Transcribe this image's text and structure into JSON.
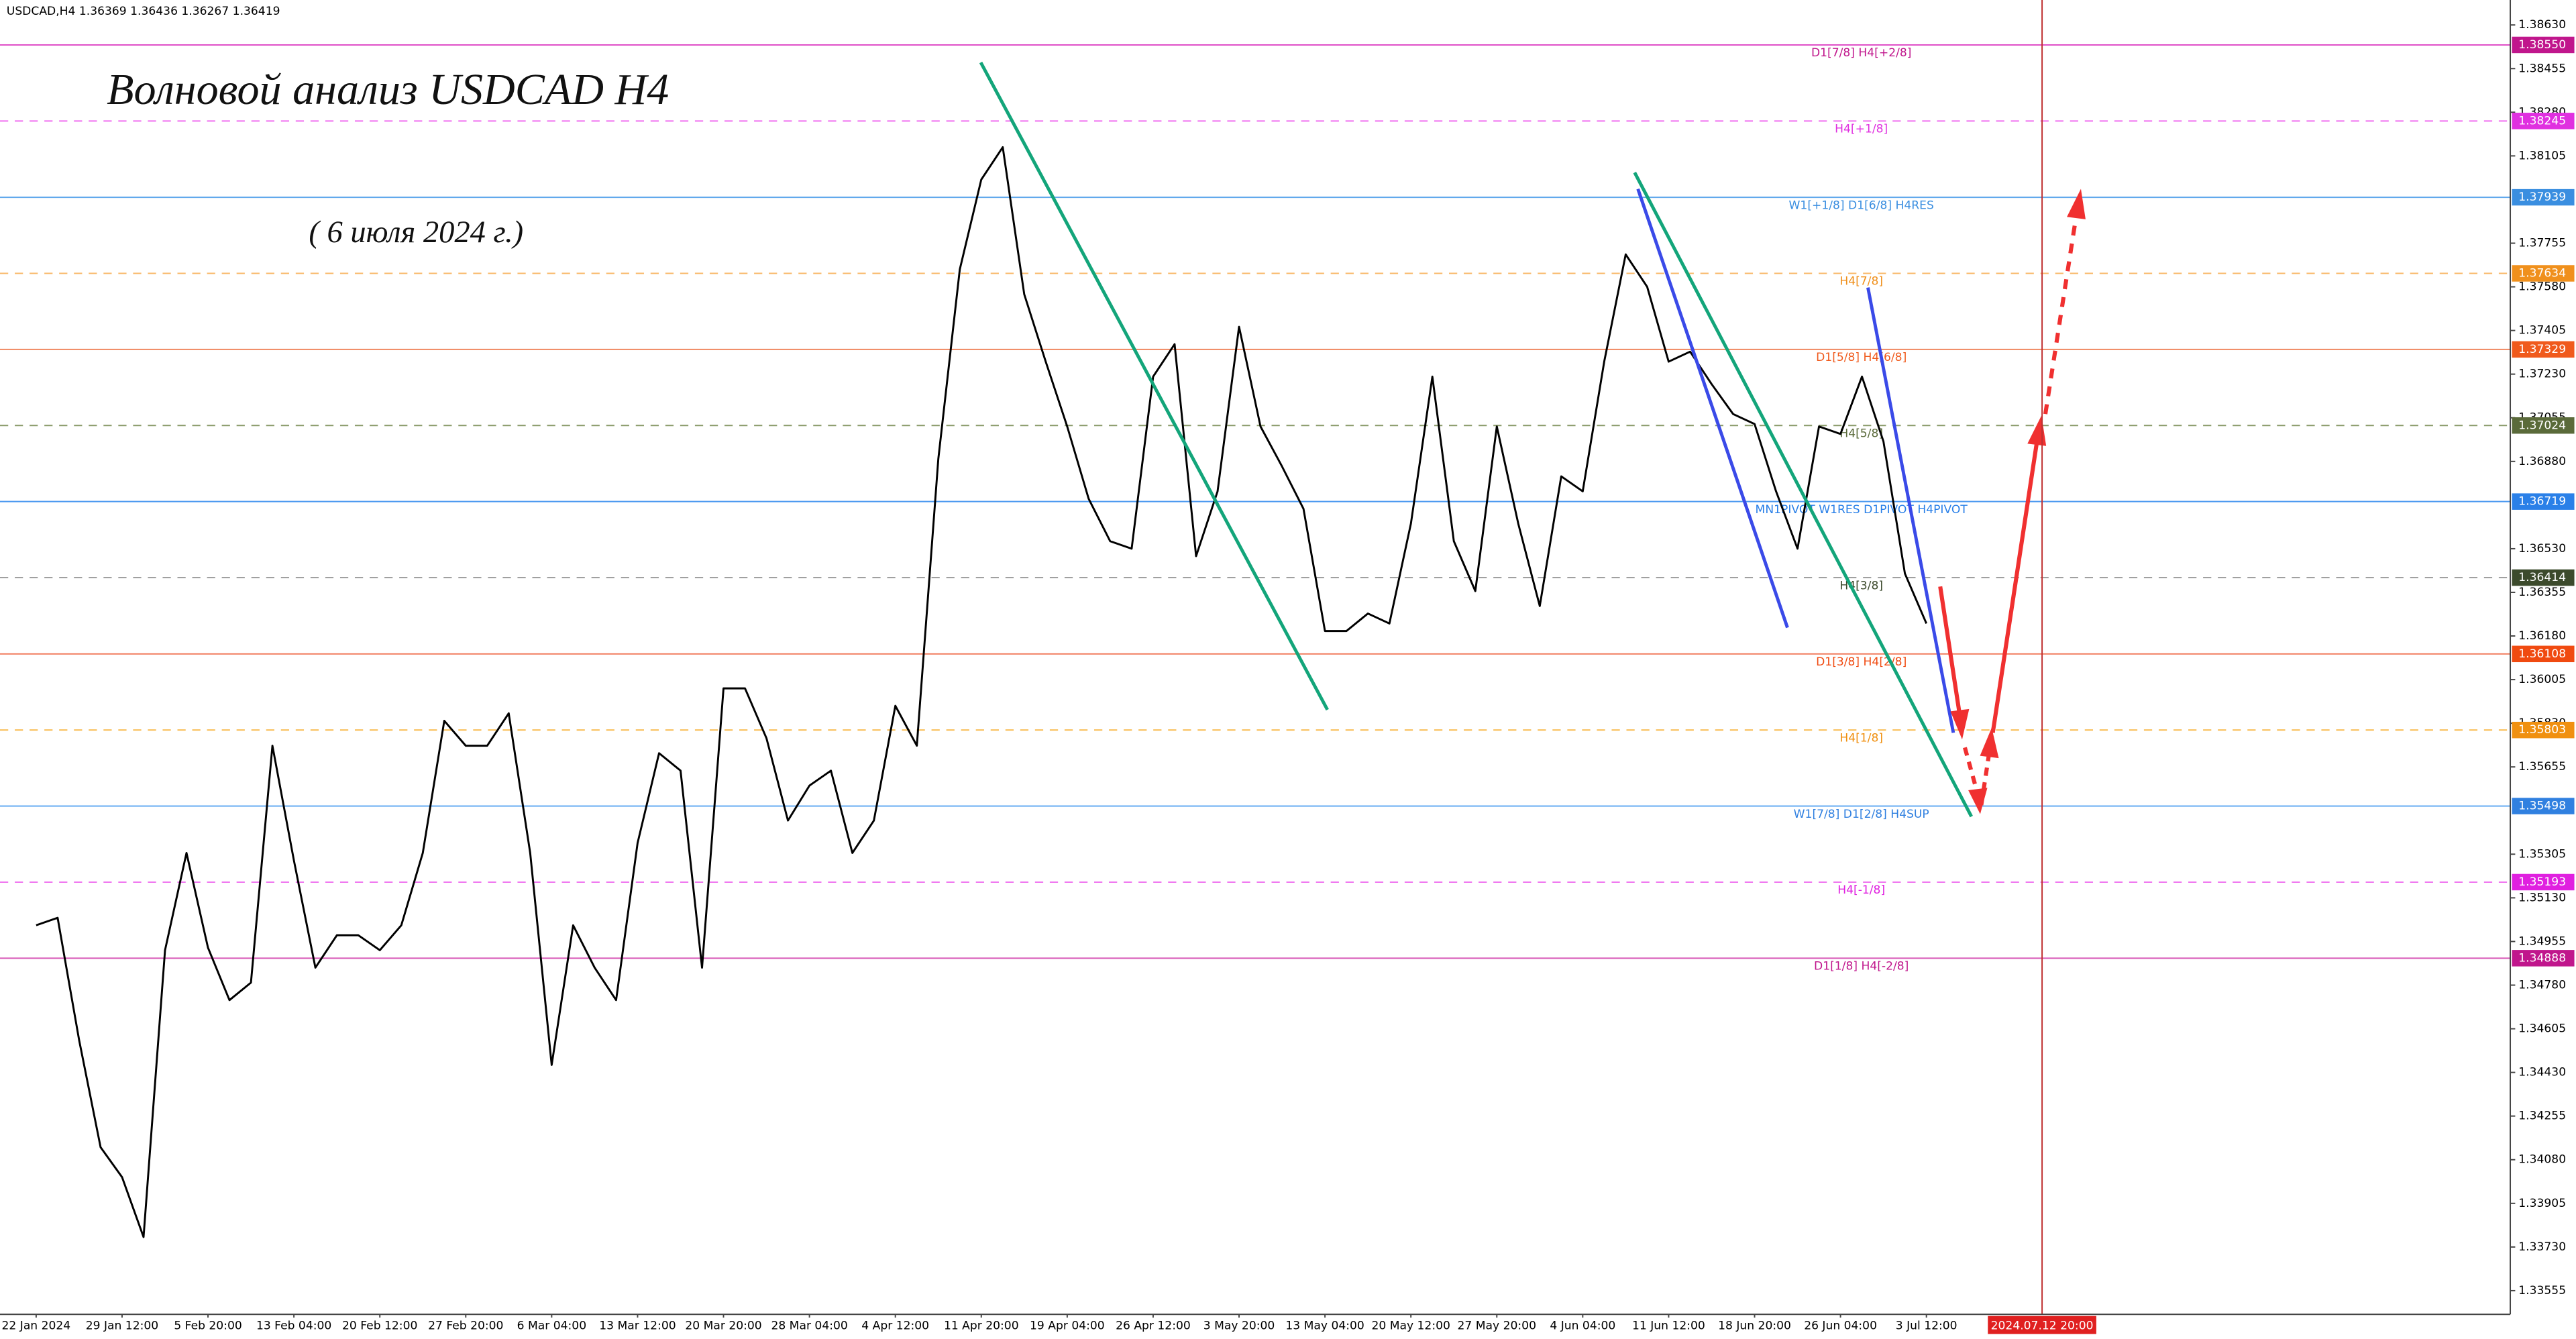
{
  "chart_data": {
    "type": "line",
    "header": "USDCAD,H4  1.36369 1.36436 1.36267 1.36419",
    "annotations": [
      "Волновой анализ USDCAD H4",
      "( 6 июля 2024 г.)"
    ],
    "marker_label": "2024.07.12 20:00",
    "color": "#000000",
    "grid": false,
    "categories": [
      "22 Jan 2024",
      null,
      null,
      null,
      "29 Jan 12:00",
      null,
      null,
      null,
      "5 Feb 20:00",
      null,
      null,
      null,
      "13 Feb 04:00",
      null,
      null,
      null,
      "20 Feb 12:00",
      null,
      null,
      null,
      "27 Feb 20:00",
      null,
      null,
      null,
      "6 Mar 04:00",
      null,
      null,
      null,
      "13 Mar 12:00",
      null,
      null,
      null,
      "20 Mar 20:00",
      null,
      null,
      null,
      "28 Mar 04:00",
      null,
      null,
      null,
      "4 Apr 12:00",
      null,
      null,
      null,
      "11 Apr 20:00",
      null,
      null,
      null,
      "19 Apr 04:00",
      null,
      null,
      null,
      "26 Apr 12:00",
      null,
      null,
      null,
      "3 May 20:00",
      null,
      null,
      null,
      "13 May 04:00",
      null,
      null,
      null,
      "20 May 12:00",
      null,
      null,
      null,
      "27 May 20:00",
      null,
      null,
      null,
      "4 Jun 04:00",
      null,
      null,
      null,
      "11 Jun 12:00",
      null,
      null,
      null,
      "18 Jun 20:00",
      null,
      null,
      null,
      "26 Jun 04:00",
      null,
      null,
      null,
      "3 Jul 12:00"
    ],
    "values": [
      1.3502,
      1.3505,
      1.3456,
      1.3413,
      1.3401,
      1.3377,
      1.3492,
      1.3531,
      1.3493,
      1.3472,
      1.3479,
      1.3574,
      1.3528,
      1.3485,
      1.3498,
      1.3498,
      1.3492,
      1.3502,
      1.3531,
      1.3584,
      1.3574,
      1.3574,
      1.3587,
      1.3531,
      1.3446,
      1.3502,
      1.3485,
      1.3472,
      1.3535,
      1.3571,
      1.3564,
      1.3485,
      1.3597,
      1.3597,
      1.3577,
      1.3544,
      1.3558,
      1.3564,
      1.3531,
      1.3544,
      1.359,
      1.3574,
      1.3689,
      1.3765,
      1.3801,
      1.3814,
      1.3755,
      1.3728,
      1.3702,
      1.3673,
      1.3656,
      1.3653,
      1.3722,
      1.3735,
      1.365,
      1.3676,
      1.3742,
      1.3702,
      1.3686,
      1.3669,
      1.362,
      1.362,
      1.3627,
      1.3623,
      1.3663,
      1.3722,
      1.3656,
      1.3636,
      1.3702,
      1.3663,
      1.363,
      1.3682,
      1.3676,
      1.3728,
      1.3771,
      1.3758,
      1.3728,
      1.3732,
      1.3719,
      1.3707,
      1.3703,
      1.3676,
      1.3653,
      1.3702,
      1.3699,
      1.3722,
      1.3696,
      1.3643,
      1.3623
    ],
    "ylim": [
      1.3346,
      1.3873
    ],
    "yticks": [
      {
        "value": 1.3863,
        "label": "1.38630"
      },
      1.38455,
      {
        "value": 1.3828,
        "label": "1.38280"
      },
      1.38105,
      1.37755,
      {
        "value": 1.3758,
        "label": "1.37580"
      },
      1.37405,
      {
        "value": 1.3723,
        "label": "1.37230"
      },
      1.37055,
      {
        "value": 1.3688,
        "label": "1.36880"
      },
      {
        "value": 1.3653,
        "label": "1.36530"
      },
      1.36355,
      {
        "value": 1.3618,
        "label": "1.36180"
      },
      1.36005,
      {
        "value": 1.3583,
        "label": "1.35830"
      },
      1.35655,
      1.35305,
      {
        "value": 1.3513,
        "label": "1.35130"
      },
      1.34955,
      {
        "value": 1.3478,
        "label": "1.34780"
      },
      1.34605,
      {
        "value": 1.3443,
        "label": "1.34430"
      },
      1.34255,
      {
        "value": 1.3408,
        "label": "1.34080"
      },
      1.33905,
      {
        "value": 1.3373,
        "label": "1.33730"
      },
      1.33555
    ],
    "levels": [
      {
        "price": {
          "value": 1.3855,
          "label": "1.38550"
        },
        "label": "D1[7/8] H4[+2/8]",
        "color": "#c0168c",
        "line_color": "#e050c8",
        "dashed": false
      },
      {
        "price": 1.38245,
        "label": "H4[+1/8]",
        "color": "#e030e0",
        "line_color": "#f070f0",
        "dashed": true
      },
      {
        "price": 1.37939,
        "label": "W1[+1/8] D1[6/8] H4RES",
        "color": "#3a8ee0",
        "line_color": "#60a8ec",
        "dashed": false
      },
      {
        "price": 1.37634,
        "label": "H4[7/8]",
        "color": "#f0901c",
        "line_color": "#f8b868",
        "dashed": true
      },
      {
        "price": 1.37329,
        "label": "D1[5/8] H4[6/8]",
        "color": "#f05a1c",
        "line_color": "#f08860",
        "dashed": false
      },
      {
        "price": 1.37024,
        "label": "H4[5/8]",
        "color": "#5a6a3a",
        "line_color": "#8a9a6a",
        "dashed": true
      },
      {
        "price": 1.36719,
        "label": "MN1PIVOT W1RES D1PIVOT H4PIVOT",
        "color": "#2a80e8",
        "line_color": "#4a98f0",
        "dashed": false
      },
      {
        "price": 1.36414,
        "label": "H4[3/8]",
        "color": "#3c4a2c",
        "line_color": "#a0a0a0",
        "dashed": true
      },
      {
        "price": 1.36108,
        "label": "D1[3/8] H4[2/8]",
        "color": "#f04a10",
        "line_color": "#f07858",
        "dashed": false
      },
      {
        "price": 1.35803,
        "label": "H4[1/8]",
        "color": "#f09010",
        "line_color": "#f8b848",
        "dashed": true
      },
      {
        "price": 1.35498,
        "label": "W1[7/8] D1[2/8] H4SUP",
        "color": "#3080e0",
        "line_color": "#58a4f0",
        "dashed": false
      },
      {
        "price": 1.35193,
        "label": "H4[-1/8]",
        "color": "#e020e0",
        "line_color": "#f078f0",
        "dashed": true
      },
      {
        "price": 1.34888,
        "label": "D1[1/8] H4[-2/8]",
        "color": "#c0168c",
        "line_color": "#d858b8",
        "dashed": false
      }
    ]
  }
}
